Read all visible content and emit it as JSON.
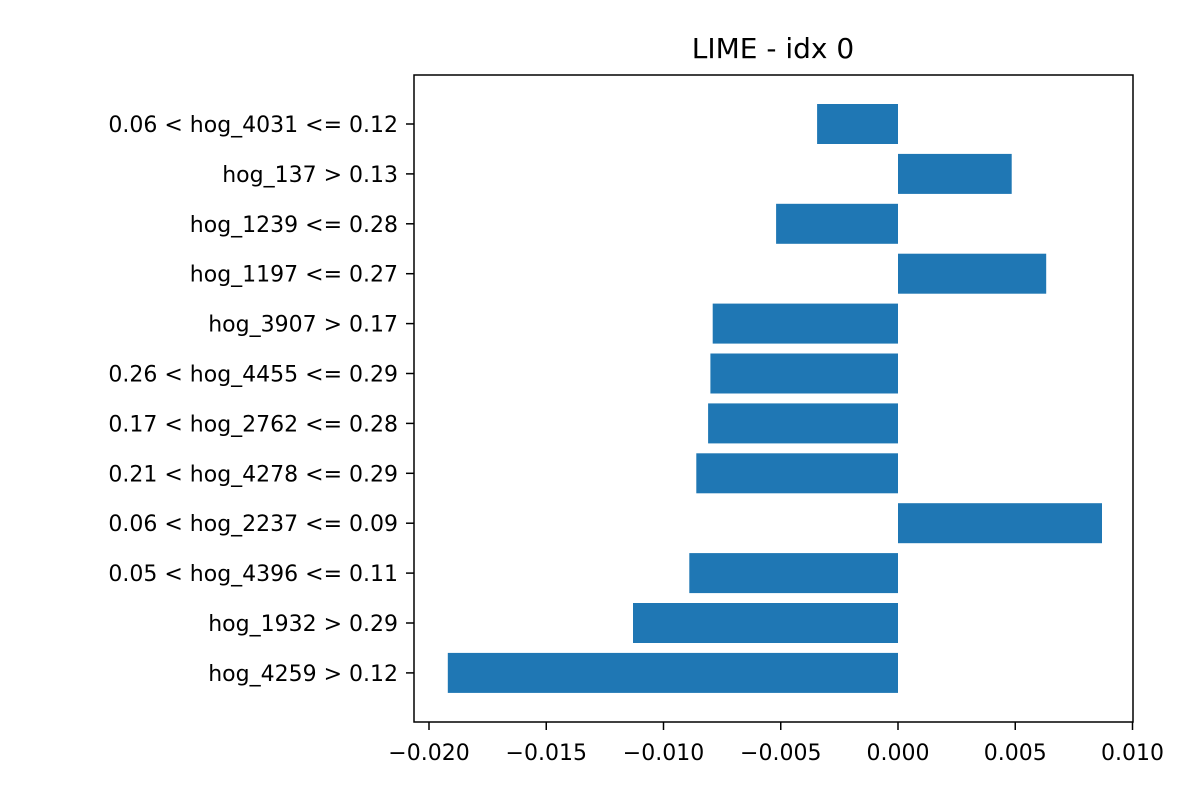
{
  "chart_data": {
    "type": "bar",
    "orientation": "horizontal",
    "title": "LIME - idx 0",
    "xlabel": "",
    "ylabel": "",
    "categories": [
      "0.06 < hog_4031 <= 0.12",
      "hog_137 > 0.13",
      "hog_1239 <= 0.28",
      "hog_1197 <= 0.27",
      "hog_3907 > 0.17",
      "0.26 < hog_4455 <= 0.29",
      "0.17 < hog_2762 <= 0.28",
      "0.21 < hog_4278 <= 0.29",
      "0.06 < hog_2237 <= 0.09",
      "0.05 < hog_4396 <= 0.11",
      "hog_1932 > 0.29",
      "hog_4259 > 0.12"
    ],
    "values": [
      -0.00345,
      0.00485,
      -0.0052,
      0.00632,
      -0.0079,
      -0.008,
      -0.0081,
      -0.0086,
      0.0087,
      -0.0089,
      -0.0113,
      -0.0192
    ],
    "xlim": [
      -0.02,
      0.01
    ],
    "xticks": [
      -0.02,
      -0.015,
      -0.01,
      -0.005,
      0.0,
      0.005,
      0.01
    ],
    "xtick_labels": [
      "−0.020",
      "−0.015",
      "−0.010",
      "−0.005",
      "0.000",
      "0.005",
      "0.010"
    ],
    "bar_color": "#1f77b4",
    "grid": false,
    "legend": "none"
  }
}
